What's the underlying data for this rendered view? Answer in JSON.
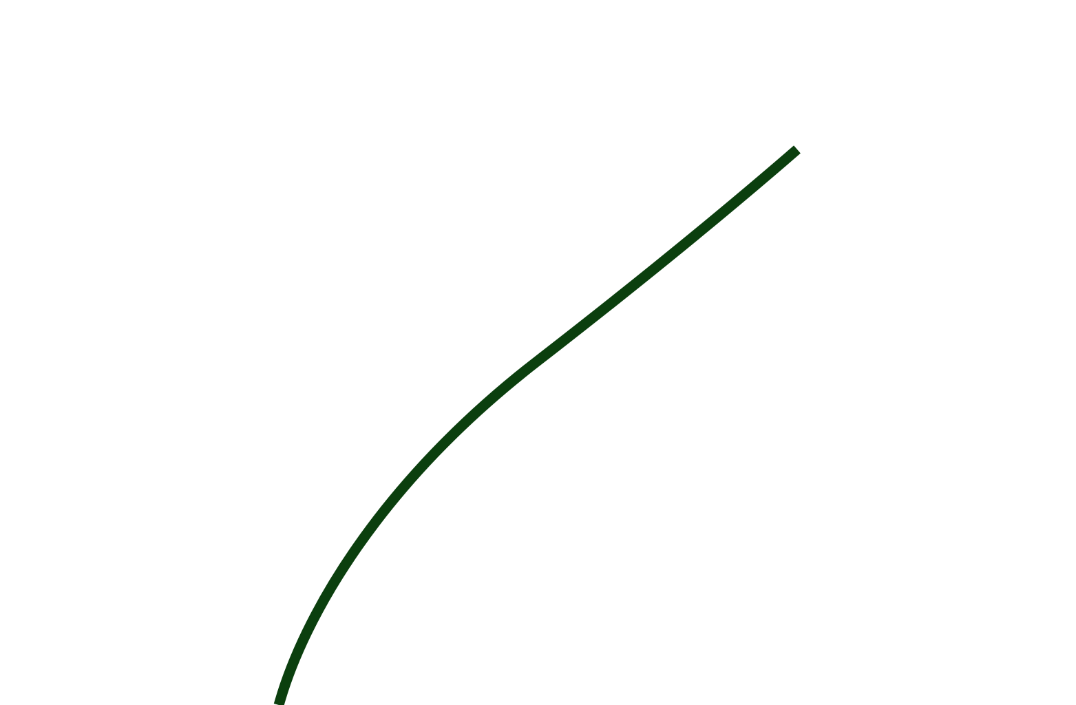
{
  "drawing": {
    "stroke_color": "#0b3f0e",
    "background_color": "#ffffff"
  }
}
